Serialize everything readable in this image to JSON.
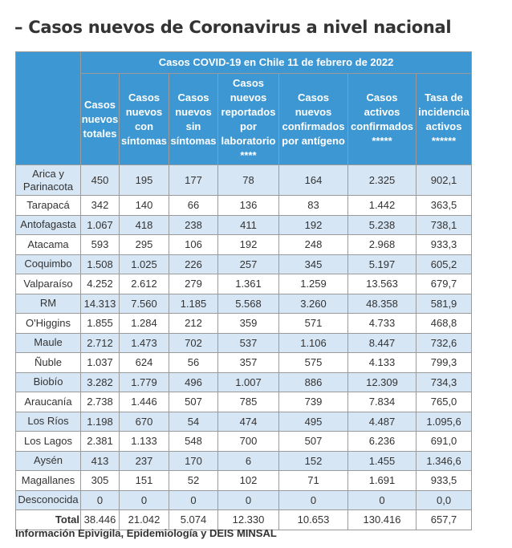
{
  "page": {
    "title": "– Casos nuevos de Coronavirus a nivel nacional",
    "footer": "Información Epivigila, Epidemiología y DEIS MINSAL"
  },
  "table": {
    "super_header": "Casos COVID-19 en Chile 11 de febrero de 2022",
    "headers": [
      "Casos nuevos totales",
      "Casos nuevos con síntomas",
      "Casos nuevos sin síntomas",
      "Casos nuevos reportados por laboratorio ****",
      "Casos nuevos confirmados por antígeno",
      "Casos activos confirmados *****",
      "Tasa de incidencia activos ******"
    ],
    "rows": [
      {
        "region": "Arica y Parinacota",
        "values": [
          "450",
          "195",
          "177",
          "78",
          "164",
          "2.325",
          "902,1"
        ]
      },
      {
        "region": "Tarapacá",
        "values": [
          "342",
          "140",
          "66",
          "136",
          "83",
          "1.442",
          "363,5"
        ]
      },
      {
        "region": "Antofagasta",
        "values": [
          "1.067",
          "418",
          "238",
          "411",
          "192",
          "5.238",
          "738,1"
        ]
      },
      {
        "region": "Atacama",
        "values": [
          "593",
          "295",
          "106",
          "192",
          "248",
          "2.968",
          "933,3"
        ]
      },
      {
        "region": "Coquimbo",
        "values": [
          "1.508",
          "1.025",
          "226",
          "257",
          "345",
          "5.197",
          "605,2"
        ]
      },
      {
        "region": "Valparaíso",
        "values": [
          "4.252",
          "2.612",
          "279",
          "1.361",
          "1.259",
          "13.563",
          "679,7"
        ]
      },
      {
        "region": "RM",
        "values": [
          "14.313",
          "7.560",
          "1.185",
          "5.568",
          "3.260",
          "48.358",
          "581,9"
        ]
      },
      {
        "region": "O'Higgins",
        "values": [
          "1.855",
          "1.284",
          "212",
          "359",
          "571",
          "4.733",
          "468,8"
        ]
      },
      {
        "region": "Maule",
        "values": [
          "2.712",
          "1.473",
          "702",
          "537",
          "1.106",
          "8.447",
          "732,6"
        ]
      },
      {
        "region": "Ñuble",
        "values": [
          "1.037",
          "624",
          "56",
          "357",
          "575",
          "4.133",
          "799,3"
        ]
      },
      {
        "region": "Biobío",
        "values": [
          "3.282",
          "1.779",
          "496",
          "1.007",
          "886",
          "12.309",
          "734,3"
        ]
      },
      {
        "region": "Araucanía",
        "values": [
          "2.738",
          "1.446",
          "507",
          "785",
          "739",
          "7.834",
          "765,0"
        ]
      },
      {
        "region": "Los Ríos",
        "values": [
          "1.198",
          "670",
          "54",
          "474",
          "495",
          "4.487",
          "1.095,6"
        ]
      },
      {
        "region": "Los Lagos",
        "values": [
          "2.381",
          "1.133",
          "548",
          "700",
          "507",
          "6.236",
          "691,0"
        ]
      },
      {
        "region": "Aysén",
        "values": [
          "413",
          "237",
          "170",
          "6",
          "152",
          "1.455",
          "1.346,6"
        ]
      },
      {
        "region": "Magallanes",
        "values": [
          "305",
          "151",
          "52",
          "102",
          "71",
          "1.691",
          "933,5"
        ]
      },
      {
        "region": "Desconocida",
        "values": [
          "0",
          "0",
          "0",
          "0",
          "0",
          "0",
          "0,0"
        ]
      }
    ],
    "total": {
      "label": "Total",
      "values": [
        "38.446",
        "21.042",
        "5.074",
        "12.330",
        "10.653",
        "130.416",
        "657,7"
      ]
    }
  }
}
